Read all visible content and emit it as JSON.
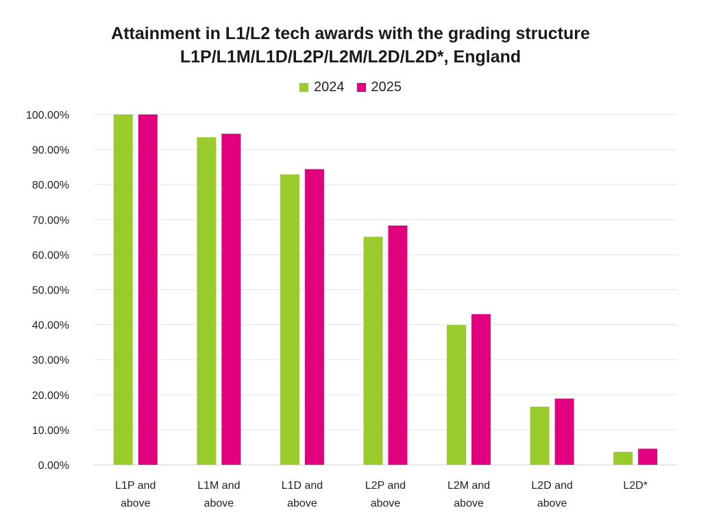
{
  "chart_data": {
    "type": "bar",
    "title_lines": [
      "Attainment in L1/L2 tech awards with the grading structure",
      "L1P/L1M/L1D/L2P/L2M/L2D/L2D*, England"
    ],
    "categories": [
      [
        "L1P and",
        "above"
      ],
      [
        "L1M and",
        "above"
      ],
      [
        "L1D and",
        "above"
      ],
      [
        "L2P and",
        "above"
      ],
      [
        "L2M and",
        "above"
      ],
      [
        "L2D and",
        "above"
      ],
      [
        "L2D*"
      ]
    ],
    "series": [
      {
        "name": "2024",
        "color": "#9acb2d",
        "values": [
          100.0,
          93.5,
          82.9,
          65.1,
          39.9,
          16.6,
          3.7
        ]
      },
      {
        "name": "2025",
        "color": "#e1007e",
        "values": [
          100.0,
          94.5,
          84.4,
          68.3,
          43.0,
          18.9,
          4.6
        ]
      }
    ],
    "ylim": [
      0,
      100
    ],
    "yticks": [
      "0.00%",
      "10.00%",
      "20.00%",
      "30.00%",
      "40.00%",
      "50.00%",
      "60.00%",
      "70.00%",
      "80.00%",
      "90.00%",
      "100.00%"
    ],
    "grid": true,
    "legend_position": "top-center"
  }
}
